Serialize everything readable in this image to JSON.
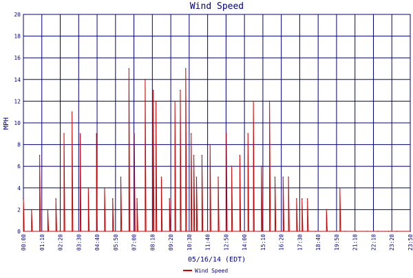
{
  "colors": {
    "background": "#ffffff",
    "grid": "#000080",
    "text": "#000080",
    "series": "#cc0000"
  },
  "chart_data": {
    "type": "line",
    "title": "Wind Speed",
    "xlabel": "05/16/14 (EDT)",
    "ylabel": "MPH",
    "ylim": [
      0,
      20
    ],
    "y_ticks": [
      0,
      2,
      4,
      6,
      8,
      10,
      12,
      14,
      16,
      18,
      20
    ],
    "x_tick_labels": [
      "00:00",
      "01:10",
      "02:20",
      "03:30",
      "04:40",
      "05:50",
      "07:00",
      "08:10",
      "09:20",
      "10:30",
      "11:40",
      "12:50",
      "14:00",
      "15:10",
      "16:20",
      "17:30",
      "18:40",
      "19:50",
      "21:10",
      "22:10",
      "23:20",
      "23:50"
    ],
    "grid": true,
    "legend": {
      "position": "bottom-center",
      "entries": [
        "Wind Speed"
      ]
    },
    "series": [
      {
        "name": "Wind Speed",
        "x": [
          "00:00",
          "00:30",
          "01:00",
          "01:30",
          "02:00",
          "02:30",
          "03:00",
          "03:30",
          "04:00",
          "04:30",
          "05:00",
          "05:30",
          "06:00",
          "06:30",
          "06:50",
          "07:00",
          "07:30",
          "08:00",
          "08:10",
          "08:30",
          "09:00",
          "09:20",
          "09:40",
          "10:00",
          "10:20",
          "10:30",
          "10:40",
          "11:00",
          "11:30",
          "12:00",
          "12:30",
          "12:50",
          "13:20",
          "13:50",
          "14:10",
          "14:40",
          "15:10",
          "15:30",
          "16:00",
          "16:20",
          "16:50",
          "17:10",
          "17:30",
          "18:00",
          "18:40",
          "19:10",
          "19:30",
          "19:50",
          "20:30",
          "21:10",
          "21:50",
          "22:30",
          "23:00",
          "23:50"
        ],
        "values": [
          3,
          2,
          7,
          2,
          3,
          9,
          11,
          9,
          4,
          9,
          4,
          3,
          5,
          15,
          9,
          3,
          14,
          13,
          12,
          5,
          3,
          12,
          13,
          15,
          9,
          7,
          5,
          7,
          8,
          5,
          9,
          6,
          7,
          9,
          12,
          6,
          12,
          5,
          5,
          5,
          3,
          3,
          3,
          0,
          2,
          0,
          4,
          0,
          0,
          0,
          0,
          0,
          0,
          0
        ]
      }
    ]
  }
}
